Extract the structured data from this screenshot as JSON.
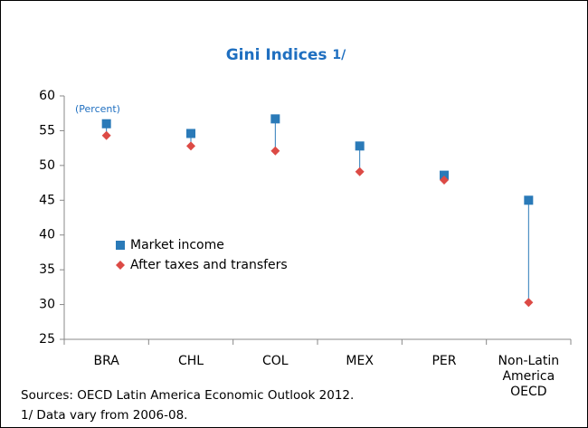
{
  "chart_data": {
    "type": "dot_range",
    "title": "Gini Indices",
    "title_note": "1/",
    "annotation": "(Percent)",
    "categories": [
      "BRA",
      "CHL",
      "COL",
      "MEX",
      "PER",
      "Non-Latin America OECD"
    ],
    "series": [
      {
        "name": "Market income",
        "color": "#2a7ab8",
        "marker": "square",
        "values": [
          56.0,
          54.6,
          56.7,
          52.8,
          48.6,
          45.0
        ]
      },
      {
        "name": "After taxes and transfers",
        "color": "#dc4a45",
        "marker": "diamond",
        "values": [
          54.3,
          52.8,
          52.1,
          49.1,
          47.9,
          30.3
        ]
      }
    ],
    "ylim": [
      25,
      60
    ],
    "yticks": [
      25,
      30,
      35,
      40,
      45,
      50,
      55,
      60
    ],
    "sources": [
      "Sources: OECD Latin America Economic Outlook 2012.",
      "1/ Data vary from 2006-08."
    ]
  }
}
